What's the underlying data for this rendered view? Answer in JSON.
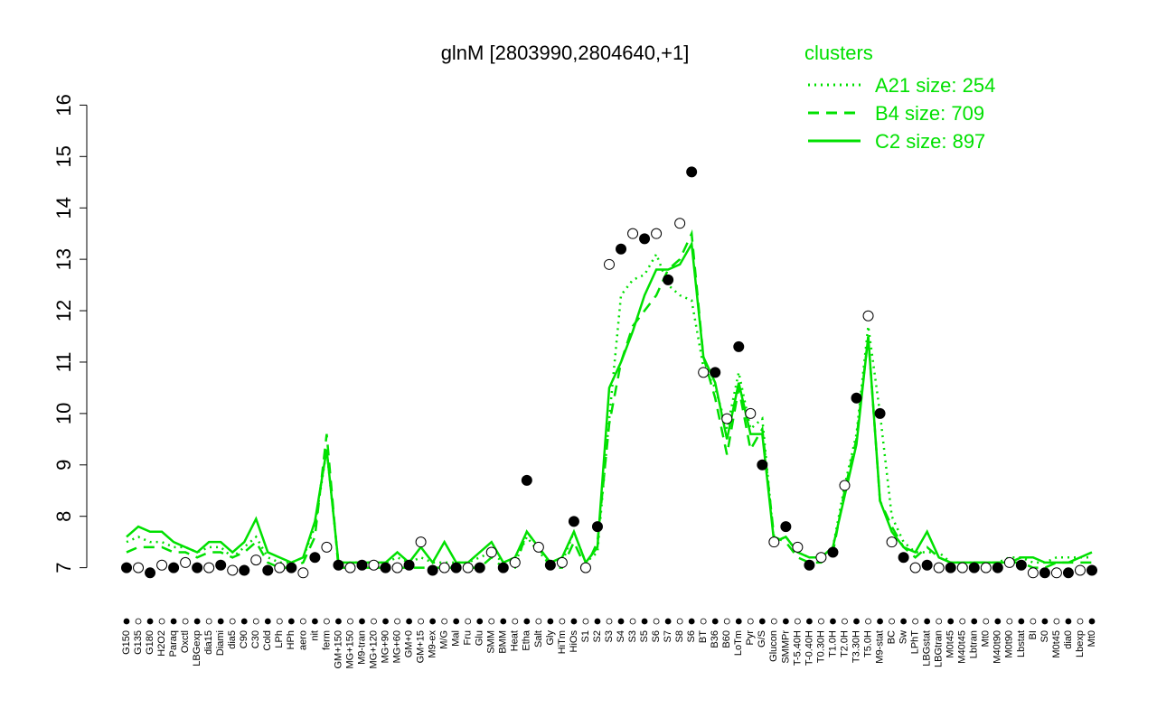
{
  "chart_data": {
    "type": "line",
    "title": "glnM [2803990,2804640,+1]",
    "legend_title": "clusters",
    "legend_color": "#00e000",
    "categories": [
      "G150",
      "G135",
      "G180",
      "H2O2",
      "Paraq",
      "Oxctl",
      "LBGexp",
      "dia15",
      "Diami",
      "dia5",
      "C90",
      "C30",
      "Cold",
      "LPh",
      "HPh",
      "aero",
      "nit",
      "ferm",
      "GM+150",
      "MG+150",
      "M9-tran",
      "MG+120",
      "MG+90",
      "MG+60",
      "GM+0",
      "GM+15",
      "M9-ex",
      "M/G",
      "Mal",
      "Fru",
      "Glu",
      "SMM",
      "BMM",
      "Heat",
      "Etha",
      "Salt",
      "Gly",
      "HiTm",
      "HiOs",
      "S1",
      "S2",
      "S3",
      "S4",
      "S3",
      "S5",
      "S6",
      "S7",
      "S8",
      "S6",
      "BT",
      "B36",
      "B60",
      "LoTm",
      "Pyr",
      "G/S",
      "Glucon",
      "SMMPr",
      "T-5.40H",
      "T-0.40H",
      "T0.30H",
      "T1.0H",
      "T2.0H",
      "T3.30H",
      "T5.0H",
      "M9-stat",
      "BC",
      "Sw",
      "LPhT",
      "LBGstat",
      "LBGtran",
      "M0t45",
      "M40t45",
      "Lbtran",
      "Mt0",
      "M40t90",
      "M0t90",
      "Lbstat",
      "BI",
      "S0",
      "M0t45",
      "dia0",
      "Lbexp",
      "Mt0"
    ],
    "series": [
      {
        "name": "A21 size: 254",
        "color": "#00e000",
        "dash": "dotted",
        "values": [
          7.5,
          7.6,
          7.5,
          7.5,
          7.4,
          7.4,
          7.3,
          7.4,
          7.4,
          7.2,
          7.4,
          7.6,
          7.2,
          7.1,
          7.1,
          7.2,
          7.8,
          9.3,
          7.1,
          7.1,
          7.1,
          7.1,
          7.1,
          7.2,
          7.1,
          7.2,
          7.1,
          7.1,
          7.1,
          7.1,
          7.2,
          7.3,
          7.1,
          7.1,
          7.6,
          7.3,
          7.1,
          7.1,
          7.7,
          7.1,
          7.3,
          9.9,
          12.3,
          12.6,
          12.7,
          13.1,
          12.5,
          12.3,
          12.2,
          10.9,
          10.5,
          9.7,
          10.8,
          9.7,
          9.9,
          7.5,
          7.6,
          7.3,
          7.2,
          7.2,
          7.4,
          8.6,
          9.6,
          11.7,
          10.0,
          8.0,
          7.5,
          7.3,
          7.3,
          7.3,
          7.1,
          7.1,
          7.1,
          7.1,
          7.1,
          7.2,
          7.2,
          7.1,
          7.1,
          7.2,
          7.2,
          7.2,
          7.2
        ]
      },
      {
        "name": "B4 size: 709",
        "color": "#00e000",
        "dash": "dashed",
        "values": [
          7.3,
          7.4,
          7.4,
          7.4,
          7.3,
          7.3,
          7.2,
          7.3,
          7.3,
          7.2,
          7.3,
          7.5,
          7.1,
          7.0,
          7.0,
          7.1,
          7.6,
          9.6,
          7.0,
          7.0,
          7.0,
          7.0,
          7.0,
          7.0,
          7.0,
          7.0,
          7.0,
          7.0,
          7.0,
          7.0,
          7.0,
          7.2,
          7.0,
          7.0,
          7.7,
          7.4,
          7.0,
          7.0,
          7.5,
          7.0,
          7.5,
          9.8,
          11.0,
          11.7,
          12.0,
          12.3,
          12.8,
          13.0,
          13.5,
          11.1,
          10.3,
          9.2,
          10.5,
          9.3,
          9.7,
          7.6,
          7.5,
          7.2,
          7.1,
          7.1,
          7.3,
          8.5,
          9.5,
          11.5,
          8.3,
          7.8,
          7.4,
          7.2,
          7.4,
          7.2,
          7.1,
          7.0,
          7.1,
          7.1,
          7.1,
          7.1,
          7.1,
          7.0,
          7.0,
          7.1,
          7.1,
          7.1,
          7.1
        ]
      },
      {
        "name": "C2 size: 897",
        "color": "#00e000",
        "dash": "solid",
        "values": [
          7.6,
          7.8,
          7.7,
          7.7,
          7.5,
          7.4,
          7.3,
          7.5,
          7.5,
          7.3,
          7.5,
          7.95,
          7.3,
          7.2,
          7.1,
          7.2,
          7.9,
          9.3,
          7.1,
          7.1,
          7.1,
          7.1,
          7.1,
          7.3,
          7.1,
          7.4,
          7.1,
          7.5,
          7.1,
          7.1,
          7.3,
          7.5,
          7.1,
          7.2,
          7.7,
          7.4,
          7.1,
          7.2,
          7.7,
          7.1,
          7.4,
          10.5,
          11.0,
          11.6,
          12.3,
          12.8,
          12.8,
          12.9,
          13.3,
          11.1,
          10.6,
          9.5,
          10.6,
          9.6,
          9.6,
          7.5,
          7.6,
          7.3,
          7.2,
          7.2,
          7.4,
          8.4,
          9.4,
          11.5,
          8.3,
          7.7,
          7.4,
          7.3,
          7.7,
          7.2,
          7.1,
          7.1,
          7.1,
          7.1,
          7.1,
          7.1,
          7.2,
          7.2,
          7.1,
          7.1,
          7.1,
          7.2,
          7.3
        ]
      }
    ],
    "points": {
      "color": "#000000",
      "values": [
        7.0,
        7.0,
        6.9,
        7.05,
        7.0,
        7.1,
        7.0,
        7.0,
        7.05,
        6.95,
        6.95,
        7.15,
        6.95,
        7.0,
        7.0,
        6.9,
        7.2,
        7.4,
        7.05,
        7.0,
        7.05,
        7.05,
        7.0,
        7.0,
        7.05,
        7.5,
        6.95,
        7.0,
        7.0,
        7.0,
        7.0,
        7.3,
        7.0,
        7.1,
        8.7,
        7.4,
        7.05,
        7.1,
        7.9,
        7.0,
        7.8,
        12.9,
        13.2,
        13.5,
        13.4,
        13.5,
        12.6,
        13.7,
        14.7,
        10.8,
        10.8,
        9.9,
        11.3,
        10.0,
        9.0,
        7.5,
        7.8,
        7.4,
        7.05,
        7.2,
        7.3,
        8.6,
        10.3,
        11.9,
        10.0,
        7.5,
        7.2,
        7.0,
        7.05,
        7.0,
        7.0,
        7.0,
        7.0,
        7.0,
        7.0,
        7.1,
        7.05,
        6.9,
        6.9,
        6.9,
        6.9,
        6.95,
        6.95
      ]
    },
    "ylim": [
      6.8,
      16.2
    ],
    "yticks": [
      7,
      8,
      9,
      10,
      11,
      12,
      13,
      14,
      15,
      16
    ],
    "legend_position": "upper right"
  }
}
